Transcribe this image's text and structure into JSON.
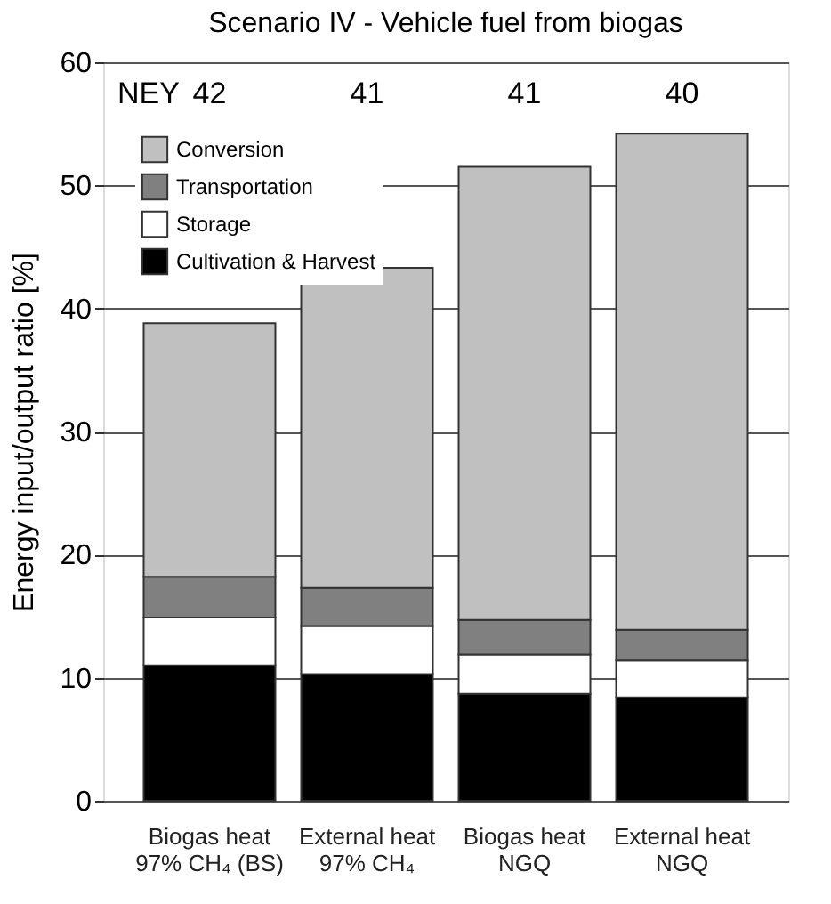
{
  "chart_data": {
    "type": "bar",
    "title": "Scenario IV - Vehicle fuel from biogas",
    "ylabel": "Energy input/output ratio [%]",
    "categories": [
      "Biogas heat\n97% CH₄ (BS)",
      "External heat\n97% CH₄",
      "Biogas heat\nNGQ",
      "External heat\nNGQ"
    ],
    "stacked": true,
    "series": [
      {
        "name": "Cultivation & Harvest",
        "color": "#000000",
        "values": [
          11.0,
          10.3,
          8.7,
          8.4
        ]
      },
      {
        "name": "Storage",
        "color": "#ffffff",
        "values": [
          3.9,
          3.9,
          3.2,
          3.0
        ]
      },
      {
        "name": "Transportation",
        "color": "#808080",
        "values": [
          3.3,
          3.1,
          2.8,
          2.5
        ]
      },
      {
        "name": "Conversion",
        "color": "#c0c0c0",
        "values": [
          20.6,
          26.0,
          36.8,
          40.3
        ]
      }
    ],
    "ylim": [
      0,
      60
    ],
    "yticks": [
      0,
      10,
      20,
      30,
      40,
      50,
      60
    ],
    "grid": "y",
    "legend": "top left",
    "annotations": [
      "NEY",
      "42",
      "41",
      "41",
      "40"
    ]
  }
}
